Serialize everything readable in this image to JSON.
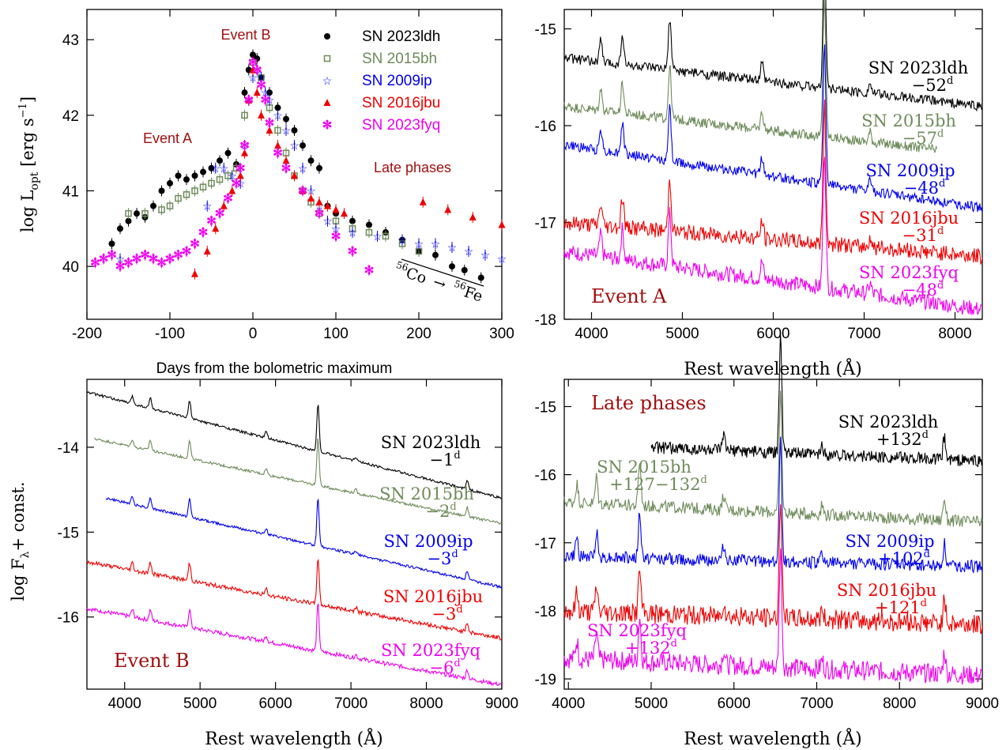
{
  "colors": {
    "SN 2023ldh": "#000000",
    "SN 2015bh": "#6e8b5a",
    "SN 2009ip": "#0000ee",
    "SN 2016jbu": "#ee0000",
    "SN 2023fyq": "#ee00ee",
    "annotation": "#a01010"
  },
  "chart_data": [
    {
      "type": "scatter",
      "panel": "top-left",
      "xlabel": "Days from the bolometric maximum",
      "ylabel": "log L_opt [erg s^-1]",
      "xlim": [
        -200,
        300
      ],
      "ylim": [
        39.3,
        43.4
      ],
      "xticks": [
        -200,
        -100,
        0,
        100,
        200,
        300
      ],
      "yticks": [
        40,
        41,
        42,
        43
      ],
      "xtick_labels": [
        "-200",
        "-100",
        "0",
        "100",
        "200",
        "300"
      ],
      "ytick_labels": [
        "40",
        "41",
        "42",
        "43"
      ],
      "legend_position": "top-right",
      "annotations": [
        "Event A",
        "Event B",
        "Late phases"
      ],
      "decay_label": {
        "co": "56",
        "co_text": "Co",
        "arrow": "→",
        "fe": "56",
        "fe_text": "Fe"
      },
      "series": [
        {
          "name": "SN 2023ldh",
          "marker": "circle",
          "x": [
            -170,
            -160,
            -150,
            -140,
            -130,
            -120,
            -110,
            -100,
            -90,
            -80,
            -70,
            -60,
            -50,
            -40,
            -30,
            -20,
            -10,
            -5,
            0,
            5,
            10,
            20,
            30,
            40,
            50,
            60,
            70,
            80,
            90,
            100,
            120,
            140,
            160,
            180,
            200,
            220,
            240,
            255,
            275
          ],
          "y": [
            40.3,
            40.5,
            40.6,
            40.7,
            40.65,
            40.8,
            41.0,
            41.1,
            41.2,
            41.15,
            41.2,
            41.25,
            41.3,
            41.4,
            41.5,
            41.35,
            42.3,
            42.6,
            42.8,
            42.75,
            42.5,
            42.3,
            42.1,
            41.95,
            41.8,
            41.6,
            41.4,
            41.3,
            40.8,
            40.7,
            40.6,
            40.55,
            40.45,
            40.35,
            40.2,
            40.15,
            40.0,
            39.95,
            39.85
          ]
        },
        {
          "name": "SN 2015bh",
          "marker": "square",
          "x": [
            -150,
            -130,
            -110,
            -100,
            -90,
            -80,
            -70,
            -60,
            -50,
            -40,
            -30,
            -20,
            -10,
            0,
            10,
            20,
            30,
            40,
            50,
            60,
            70,
            80,
            100,
            120,
            140,
            160,
            180,
            200
          ],
          "y": [
            40.7,
            40.7,
            40.75,
            40.8,
            40.9,
            40.95,
            41.0,
            41.05,
            41.1,
            41.15,
            41.2,
            41.3,
            42.0,
            42.7,
            42.5,
            42.1,
            41.8,
            41.5,
            41.2,
            41.0,
            40.85,
            40.7,
            40.6,
            40.5,
            40.45,
            40.4,
            40.3,
            40.2
          ]
        },
        {
          "name": "SN 2009ip",
          "marker": "star",
          "x": [
            -160,
            -55,
            -45,
            -35,
            -25,
            -15,
            -10,
            -5,
            0,
            5,
            10,
            15,
            20,
            30,
            40,
            50,
            60,
            70,
            80,
            90,
            100,
            120,
            150,
            180,
            200,
            220,
            240,
            260,
            280,
            300
          ],
          "y": [
            40.1,
            40.8,
            41.3,
            41.3,
            41.2,
            41.1,
            41.6,
            42.2,
            42.5,
            42.6,
            42.5,
            42.3,
            42.2,
            42.0,
            41.8,
            41.6,
            41.3,
            41.0,
            40.8,
            40.6,
            40.5,
            40.45,
            40.4,
            40.35,
            40.3,
            40.3,
            40.25,
            40.2,
            40.15,
            40.1
          ]
        },
        {
          "name": "SN 2016jbu",
          "marker": "triangle",
          "x": [
            -70,
            -55,
            -45,
            -35,
            -25,
            -15,
            -10,
            -5,
            0,
            5,
            10,
            20,
            30,
            40,
            50,
            60,
            70,
            80,
            90,
            100,
            110,
            205,
            235,
            265,
            300
          ],
          "y": [
            39.9,
            40.2,
            40.5,
            40.8,
            41.0,
            41.2,
            41.5,
            42.2,
            42.6,
            42.3,
            42.0,
            41.8,
            41.6,
            41.4,
            41.2,
            41.0,
            40.9,
            40.85,
            40.8,
            40.75,
            40.7,
            40.85,
            40.75,
            40.65,
            40.55
          ]
        },
        {
          "name": "SN 2023fyq",
          "marker": "asterisk",
          "x": [
            -190,
            -180,
            -170,
            -160,
            -150,
            -140,
            -130,
            -120,
            -110,
            -100,
            -90,
            -80,
            -70,
            -60,
            -50,
            -40,
            -30,
            -20,
            -15,
            -10,
            -5,
            0,
            5,
            10,
            15,
            20,
            30,
            40,
            60,
            80,
            100,
            120,
            140
          ],
          "y": [
            40.05,
            40.1,
            40.15,
            40.0,
            40.05,
            40.1,
            40.15,
            40.1,
            40.05,
            40.1,
            40.15,
            40.2,
            40.3,
            40.45,
            40.6,
            40.7,
            40.9,
            41.1,
            41.3,
            41.6,
            42.2,
            42.7,
            42.6,
            42.4,
            42.2,
            41.9,
            41.5,
            41.3,
            41.0,
            40.7,
            40.4,
            40.2,
            39.95
          ]
        }
      ]
    },
    {
      "type": "line",
      "panel": "top-right",
      "xlabel": "Rest wavelength (Å)",
      "ylabel": "",
      "xlim": [
        3700,
        8300
      ],
      "ylim": [
        -18,
        -14.8
      ],
      "xticks": [
        4000,
        5000,
        6000,
        7000,
        8000
      ],
      "yticks": [
        -15,
        -16,
        -17,
        -18
      ],
      "xtick_labels": [
        "4000",
        "5000",
        "6000",
        "7000",
        "8000"
      ],
      "ytick_labels": [
        "-15",
        "-16",
        "-17",
        "-18"
      ],
      "panel_label": "Event A",
      "series": [
        {
          "name": "SN 2023ldh",
          "epoch": "−52",
          "sup": "d",
          "base": [
            -15.3,
            -15.8
          ],
          "x_range": [
            3700,
            8300
          ]
        },
        {
          "name": "SN 2015bh",
          "epoch": "−57",
          "sup": "d",
          "base": [
            -15.8,
            -16.25
          ],
          "x_range": [
            3700,
            7800
          ]
        },
        {
          "name": "SN 2009ip",
          "epoch": "−48",
          "sup": "d",
          "base": [
            -16.2,
            -16.85
          ],
          "x_range": [
            3700,
            8300
          ]
        },
        {
          "name": "SN 2016jbu",
          "epoch": "−31",
          "sup": "d",
          "base": [
            -17.0,
            -17.35
          ],
          "x_range": [
            3700,
            8300
          ]
        },
        {
          "name": "SN 2023fyq",
          "epoch": "−48",
          "sup": "d",
          "base": [
            -17.3,
            -17.9
          ],
          "x_range": [
            3700,
            8300
          ]
        }
      ]
    },
    {
      "type": "line",
      "panel": "bottom-left",
      "xlabel": "Rest wavelength (Å)",
      "ylabel": "log F_λ + const.",
      "xlim": [
        3500,
        9000
      ],
      "ylim": [
        -16.85,
        -13.2
      ],
      "xticks": [
        4000,
        5000,
        6000,
        7000,
        8000,
        9000
      ],
      "yticks": [
        -14,
        -15,
        -16
      ],
      "xtick_labels": [
        "4000",
        "5000",
        "6000",
        "7000",
        "8000",
        "9000"
      ],
      "ytick_labels": [
        "-14",
        "-15",
        "-16"
      ],
      "panel_label": "Event B",
      "series": [
        {
          "name": "SN 2023ldh",
          "epoch": "−1",
          "sup": "d",
          "base": [
            -13.35,
            -14.6
          ],
          "x_range": [
            3500,
            9000
          ]
        },
        {
          "name": "SN 2015bh",
          "epoch": "−2",
          "sup": "d",
          "base": [
            -13.9,
            -14.9
          ],
          "x_range": [
            3600,
            9000
          ]
        },
        {
          "name": "SN 2009ip",
          "epoch": "−3",
          "sup": "d",
          "base": [
            -14.6,
            -15.65
          ],
          "x_range": [
            3750,
            9000
          ]
        },
        {
          "name": "SN 2016jbu",
          "epoch": "−3",
          "sup": "d",
          "base": [
            -15.35,
            -16.25
          ],
          "x_range": [
            3500,
            9000
          ]
        },
        {
          "name": "SN 2023fyq",
          "epoch": "−6",
          "sup": "d",
          "base": [
            -15.9,
            -16.8
          ],
          "x_range": [
            3500,
            9000
          ]
        }
      ]
    },
    {
      "type": "line",
      "panel": "bottom-right",
      "xlabel": "Rest wavelength (Å)",
      "ylabel": "",
      "xlim": [
        3950,
        9000
      ],
      "ylim": [
        -19.15,
        -14.6
      ],
      "xticks": [
        4000,
        5000,
        6000,
        7000,
        8000,
        9000
      ],
      "yticks": [
        -15,
        -16,
        -17,
        -18,
        -19
      ],
      "xtick_labels": [
        "4000",
        "5000",
        "6000",
        "7000",
        "8000",
        "9000"
      ],
      "ytick_labels": [
        "-15",
        "-16",
        "-17",
        "-18",
        "-19"
      ],
      "panel_label": "Late phases",
      "series": [
        {
          "name": "SN 2023ldh",
          "epoch": "+132",
          "sup": "d",
          "base": [
            -15.6,
            -15.8
          ],
          "x_range": [
            5000,
            9000
          ]
        },
        {
          "name": "SN 2015bh",
          "epoch": "+127−132",
          "sup": "d",
          "base": [
            -16.4,
            -16.7
          ],
          "x_range": [
            3950,
            9000
          ]
        },
        {
          "name": "SN 2009ip",
          "epoch": "+102",
          "sup": "d",
          "base": [
            -17.2,
            -17.35
          ],
          "x_range": [
            3950,
            9000
          ]
        },
        {
          "name": "SN 2016jbu",
          "epoch": "+121",
          "sup": "d",
          "base": [
            -18.0,
            -18.2
          ],
          "x_range": [
            3950,
            9000
          ]
        },
        {
          "name": "SN 2023fyq",
          "epoch": "+132",
          "sup": "d",
          "base": [
            -18.7,
            -18.95
          ],
          "x_range": [
            3950,
            9000
          ]
        }
      ]
    }
  ]
}
